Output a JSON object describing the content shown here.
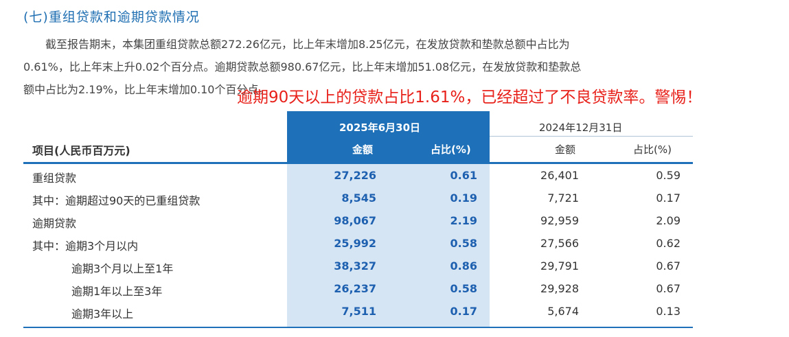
{
  "heading": "(七)重组贷款和逾期贷款情况",
  "paragraph": {
    "line1": "截至报告期末，本集团重组贷款总额272.26亿元，比上年末增加8.25亿元，在发放贷款和垫款总额中占比为",
    "line2": "0.61%，比上年末上升0.02个百分点。逾期贷款总额980.67亿元，比上年末增加51.08亿元，在发放贷款和垫款总",
    "line3": "额中占比为2.19%，比上年末增加0.10个百分点。"
  },
  "annotation": "逾期90天以上的贷款占比1.61%，已经超过了不良贷款率。警惕！",
  "table": {
    "item_header": "项目(人民币百万元)",
    "period_current": "2025年6月30日",
    "period_previous": "2024年12月31日",
    "col_amount": "金额",
    "col_ratio": "占比(%)",
    "rows": [
      {
        "label": "重组贷款",
        "cur_amount": "27,226",
        "cur_ratio": "0.61",
        "prev_amount": "26,401",
        "prev_ratio": "0.59"
      },
      {
        "label": "其中：逾期超过90天的已重组贷款",
        "cur_amount": "8,545",
        "cur_ratio": "0.19",
        "prev_amount": "7,721",
        "prev_ratio": "0.17"
      },
      {
        "label": "逾期贷款",
        "cur_amount": "98,067",
        "cur_ratio": "2.19",
        "prev_amount": "92,959",
        "prev_ratio": "2.09"
      },
      {
        "label": "其中：逾期3个月以内",
        "cur_amount": "25,992",
        "cur_ratio": "0.58",
        "prev_amount": "27,566",
        "prev_ratio": "0.62"
      },
      {
        "label": "逾期3个月以上至1年",
        "cur_amount": "38,327",
        "cur_ratio": "0.86",
        "prev_amount": "29,791",
        "prev_ratio": "0.67"
      },
      {
        "label": "逾期1年以上至3年",
        "cur_amount": "26,237",
        "cur_ratio": "0.58",
        "prev_amount": "29,928",
        "prev_ratio": "0.67"
      },
      {
        "label": "逾期3年以上",
        "cur_amount": "7,511",
        "cur_ratio": "0.17",
        "prev_amount": "5,674",
        "prev_ratio": "0.13"
      }
    ]
  },
  "colors": {
    "accent_blue": "#1e71b8",
    "highlight_blue": "#d6e5f4",
    "annotation_red": "#e8201a"
  }
}
